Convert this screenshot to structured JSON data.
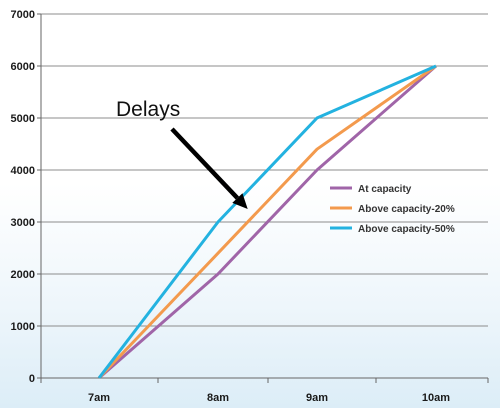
{
  "chart_data": {
    "type": "line",
    "categories": [
      "7am",
      "8am",
      "9am",
      "10am"
    ],
    "ylim": [
      0,
      7000
    ],
    "yticks": [
      0,
      1000,
      2000,
      3000,
      4000,
      5000,
      6000,
      7000
    ],
    "grid": true,
    "legend_position": "right",
    "series": [
      {
        "name": "At capacity",
        "color": "#a065a8",
        "values": [
          0,
          2000,
          4000,
          6000
        ]
      },
      {
        "name": "Above capacity-20%",
        "color": "#f39a4d",
        "values": [
          0,
          2400,
          4400,
          6000
        ]
      },
      {
        "name": "Above capacity-50%",
        "color": "#23b2e0",
        "values": [
          0,
          3000,
          5000,
          6000
        ]
      }
    ],
    "annotation": {
      "text": "Delays",
      "x_category": "8am",
      "x_offset": 0.3,
      "y": 3250
    }
  }
}
